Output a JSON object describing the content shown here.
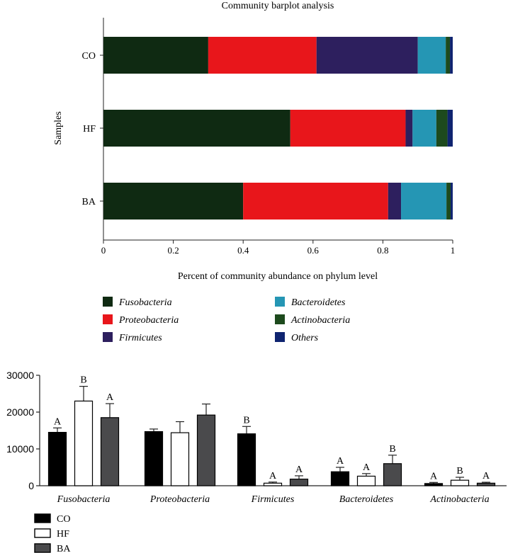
{
  "chart_data": [
    {
      "type": "bar",
      "orientation": "horizontal",
      "stacked": true,
      "title": "Community barplot analysis",
      "xlabel": "Percent of community abundance on phylum level",
      "ylabel": "Samples",
      "xlim": [
        0,
        1
      ],
      "xticks": [
        "0",
        "0.2",
        "0.4",
        "0.6",
        "0.8",
        "1"
      ],
      "xtick_values": [
        0,
        0.2,
        0.4,
        0.6,
        0.8,
        1
      ],
      "categories": [
        "CO",
        "HF",
        "BA"
      ],
      "series": [
        {
          "name": "Fusobacteria",
          "color": "#0f2a12",
          "values": [
            0.3,
            0.535,
            0.4
          ]
        },
        {
          "name": "Proteobacteria",
          "color": "#e8161b",
          "values": [
            0.31,
            0.33,
            0.415
          ]
        },
        {
          "name": "Firmicutes",
          "color": "#2d1f5e",
          "values": [
            0.29,
            0.02,
            0.037
          ]
        },
        {
          "name": "Bacteroidetes",
          "color": "#2596b4",
          "values": [
            0.08,
            0.068,
            0.13
          ]
        },
        {
          "name": "Actinobacteria",
          "color": "#1d4a1d",
          "values": [
            0.012,
            0.032,
            0.012
          ]
        },
        {
          "name": "Others",
          "color": "#0f2470",
          "values": [
            0.008,
            0.015,
            0.006
          ]
        }
      ],
      "legend_position": "bottom"
    },
    {
      "type": "bar",
      "orientation": "vertical",
      "grouped": true,
      "title": "",
      "xlabel": "",
      "ylabel": "",
      "ylim": [
        0,
        30000
      ],
      "yticks": [
        "0",
        "10000",
        "20000",
        "30000"
      ],
      "ytick_values": [
        0,
        10000,
        20000,
        30000
      ],
      "categories": [
        "Fusobacteria",
        "Proteobacteria",
        "Firmicutes",
        "Bacteroidetes",
        "Actinobacteria"
      ],
      "series": [
        {
          "name": "CO",
          "fill": "#000000",
          "values": [
            14500,
            14700,
            14100,
            3800,
            600
          ],
          "errors": [
            1200,
            700,
            2000,
            1200,
            300
          ],
          "labels": [
            "A",
            "",
            "B",
            "A",
            "A"
          ]
        },
        {
          "name": "HF",
          "fill": "#ffffff",
          "values": [
            23000,
            14400,
            700,
            2600,
            1500
          ],
          "errors": [
            4000,
            3000,
            300,
            700,
            800
          ],
          "labels": [
            "B",
            "",
            "A",
            "A",
            "B"
          ]
        },
        {
          "name": "BA",
          "fill": "#4a4a4c",
          "values": [
            18500,
            19200,
            1800,
            6000,
            700
          ],
          "errors": [
            3800,
            3000,
            900,
            2300,
            250
          ],
          "labels": [
            "A",
            "",
            "A",
            "B",
            "A"
          ]
        }
      ],
      "legend_position": "bottom-left"
    }
  ]
}
